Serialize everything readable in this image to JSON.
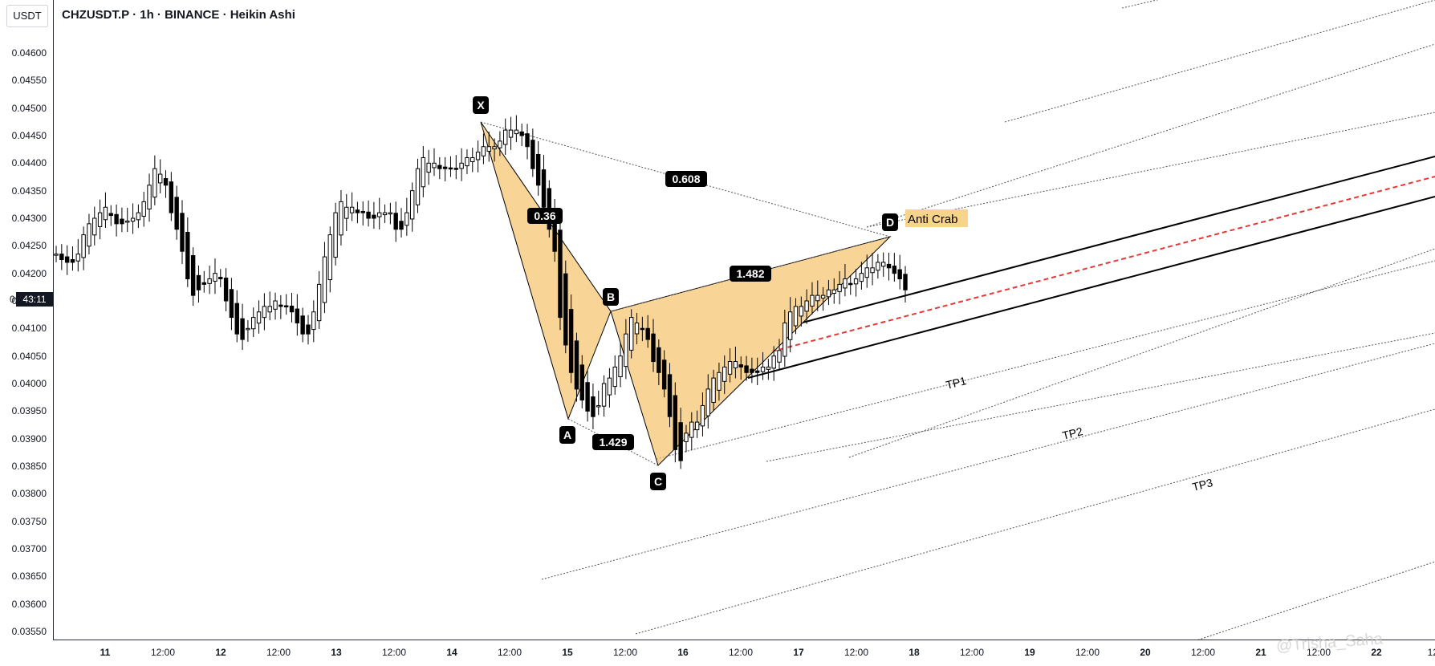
{
  "header": {
    "title": "CHZUSDT.P · 1h · BINANCE · Heikin Ashi",
    "currency_label": "USDT"
  },
  "price_tag": {
    "prefix": "0",
    "value": "43:11"
  },
  "watermark": "@Trisha_Saha",
  "colors": {
    "candle": "#000000",
    "pattern_fill": "#f5c26b",
    "anti_crab_label_bg": "#f8d48a",
    "target_line": "#e53935",
    "label_bg": "#000000",
    "label_text": "#ffffff"
  },
  "chart_data": {
    "type": "candlestick",
    "chart_style": "Heikin Ashi",
    "symbol": "CHZUSDT.P",
    "interval": "1h",
    "exchange": "BINANCE",
    "ylim": [
      0.0354,
      0.0464
    ],
    "y_ticks": [
      "0.04600",
      "0.04550",
      "0.04500",
      "0.04450",
      "0.04400",
      "0.04350",
      "0.04300",
      "0.04250",
      "0.04200",
      "0.04150",
      "0.04100",
      "0.04050",
      "0.04000",
      "0.03950",
      "0.03900",
      "0.03850",
      "0.03800",
      "0.03750",
      "0.03700",
      "0.03650",
      "0.03600",
      "0.03550"
    ],
    "x_ticks": [
      {
        "label": "11",
        "day": true
      },
      {
        "label": "12:00",
        "day": false
      },
      {
        "label": "12",
        "day": true
      },
      {
        "label": "12:00",
        "day": false
      },
      {
        "label": "13",
        "day": true
      },
      {
        "label": "12:00",
        "day": false
      },
      {
        "label": "14",
        "day": true
      },
      {
        "label": "12:00",
        "day": false
      },
      {
        "label": "15",
        "day": true
      },
      {
        "label": "12:00",
        "day": false
      },
      {
        "label": "16",
        "day": true
      },
      {
        "label": "12:00",
        "day": false
      },
      {
        "label": "17",
        "day": true
      },
      {
        "label": "12:00",
        "day": false
      },
      {
        "label": "18",
        "day": true
      },
      {
        "label": "12:00",
        "day": false
      },
      {
        "label": "19",
        "day": true
      },
      {
        "label": "12:00",
        "day": false
      },
      {
        "label": "20",
        "day": true
      },
      {
        "label": "12:00",
        "day": false
      },
      {
        "label": "21",
        "day": true
      },
      {
        "label": "12:00",
        "day": false
      },
      {
        "label": "22",
        "day": true
      },
      {
        "label": "12:",
        "day": false
      }
    ],
    "x_range_hours": [
      0,
      282
    ],
    "pattern": {
      "name": "Anti Crab",
      "points": [
        {
          "label": "X",
          "hour": 85,
          "price": 0.04476
        },
        {
          "label": "A",
          "hour": 112,
          "price": 0.03935
        },
        {
          "label": "B",
          "hour": 126,
          "price": 0.0413
        },
        {
          "label": "C",
          "hour": 142,
          "price": 0.0385
        },
        {
          "label": "D",
          "hour": 183,
          "price": 0.04265
        }
      ],
      "ratios": [
        {
          "label": "0.36",
          "between": "XA-B"
        },
        {
          "label": "0.608",
          "between": "X-D"
        },
        {
          "label": "1.429",
          "between": "A-C"
        },
        {
          "label": "1.482",
          "between": "B-D"
        }
      ]
    },
    "targets": [
      "TP1",
      "TP2",
      "TP3"
    ],
    "candles_close": [
      0.04235,
      0.04225,
      0.0422,
      0.0422,
      0.04235,
      0.0427,
      0.0429,
      0.043,
      0.0431,
      0.0432,
      0.04305,
      0.0429,
      0.0429,
      0.04295,
      0.043,
      0.0431,
      0.0433,
      0.0436,
      0.0439,
      0.0438,
      0.0436,
      0.0431,
      0.0428,
      0.0424,
      0.0419,
      0.0416,
      0.0417,
      0.0418,
      0.0419,
      0.042,
      0.0419,
      0.0415,
      0.0412,
      0.0409,
      0.0408,
      0.041,
      0.0412,
      0.0413,
      0.0414,
      0.0414,
      0.0415,
      0.0414,
      0.0414,
      0.0413,
      0.0411,
      0.0409,
      0.0409,
      0.0413,
      0.0418,
      0.0423,
      0.0427,
      0.0431,
      0.0433,
      0.0432,
      0.0432,
      0.0431,
      0.0431,
      0.043,
      0.043,
      0.0431,
      0.0431,
      0.0431,
      0.0428,
      0.0428,
      0.0431,
      0.0435,
      0.0439,
      0.0441,
      0.044,
      0.044,
      0.0439,
      0.0439,
      0.0439,
      0.0439,
      0.044,
      0.0441,
      0.0441,
      0.0442,
      0.0443,
      0.0443,
      0.0443,
      0.0444,
      0.0446,
      0.0446,
      0.0446,
      0.0445,
      0.0443,
      0.0439,
      0.0436,
      0.0432,
      0.0428,
      0.0424,
      0.0412,
      0.0407,
      0.0402,
      0.0399,
      0.0397,
      0.0395,
      0.0394,
      0.0396,
      0.04,
      0.0401,
      0.0403,
      0.0405,
      0.0409,
      0.0412,
      0.0411,
      0.041,
      0.0408,
      0.0404,
      0.0402,
      0.0399,
      0.0394,
      0.0388,
      0.0386,
      0.0391,
      0.0393,
      0.0393,
      0.0396,
      0.0399,
      0.0401,
      0.0402,
      0.0403,
      0.0404,
      0.0404,
      0.0403,
      0.0402,
      0.0402,
      0.0402,
      0.0403,
      0.0403,
      0.0405,
      0.0406,
      0.0411,
      0.0413,
      0.0414,
      0.0414,
      0.0415,
      0.0416,
      0.0416,
      0.0416,
      0.0417,
      0.0417,
      0.0418,
      0.0419,
      0.0418,
      0.0419,
      0.042,
      0.0421,
      0.0421,
      0.0422,
      0.0422,
      0.0421,
      0.042,
      0.0419,
      0.0417
    ]
  }
}
